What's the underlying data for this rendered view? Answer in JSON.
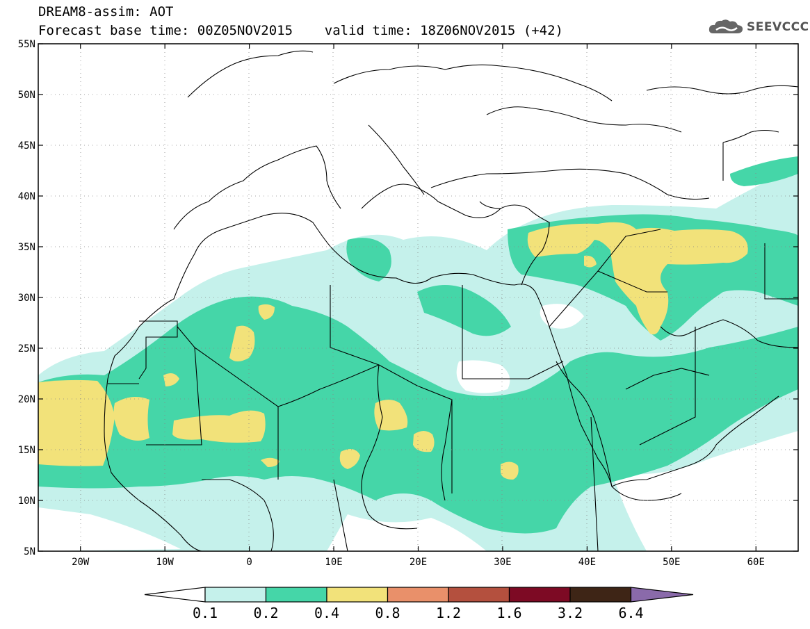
{
  "header": {
    "line1": "DREAM8-assim: AOT",
    "line2": "Forecast base time: 00Z05NOV2015    valid time: 18Z06NOV2015 (+42)"
  },
  "logo": {
    "text": "SEEVCCC",
    "icon": "cloud-logo-icon"
  },
  "map": {
    "lon_range": [
      -25,
      65
    ],
    "lat_range": [
      5,
      55
    ],
    "lat_ticks": [
      "5N",
      "10N",
      "15N",
      "20N",
      "25N",
      "30N",
      "35N",
      "40N",
      "45N",
      "50N",
      "55N"
    ],
    "lon_ticks": [
      "20W",
      "10W",
      "0",
      "10E",
      "20E",
      "30E",
      "40E",
      "50E",
      "60E"
    ],
    "grid": "dotted"
  },
  "legend": {
    "thresholds": [
      "0.1",
      "0.2",
      "0.4",
      "0.8",
      "1.2",
      "1.6",
      "3.2",
      "6.4"
    ],
    "colors": [
      "#ffffff",
      "#c5f1eb",
      "#45d6a8",
      "#f2e27a",
      "#e9906a",
      "#b4503e",
      "#7d0a24",
      "#3e2516",
      "#8a6aaa"
    ]
  }
}
